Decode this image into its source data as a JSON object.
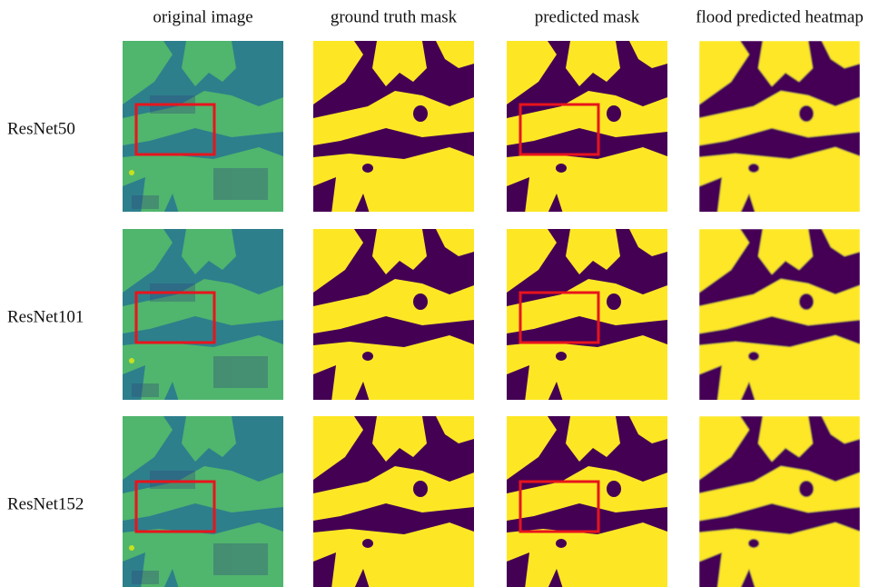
{
  "columns": [
    "original image",
    "ground truth mask",
    "predicted mask",
    "flood predicted heatmap"
  ],
  "rows": [
    "ResNet50",
    "ResNet101",
    "ResNet152"
  ]
}
